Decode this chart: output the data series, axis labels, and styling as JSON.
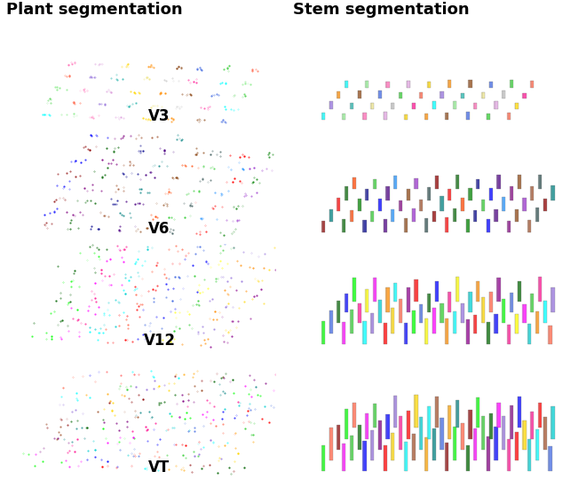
{
  "title_left": "Plant segmentation",
  "title_right": "Stem segmentation",
  "labels": [
    "V3",
    "V6",
    "V12",
    "VT"
  ],
  "background_color": "#ffffff",
  "title_fontsize": 13,
  "label_fontsize": 12,
  "fig_width": 6.6,
  "fig_height": 5.49,
  "dpi": 100,
  "rows": 4,
  "cols": 2,
  "plant_colors_v3": [
    "#00ffff",
    "#90ee90",
    "#ff69b4",
    "#dda0dd",
    "#ffd700",
    "#ff8c00",
    "#8b4513",
    "#4169e1",
    "#32cd32",
    "#ff6347",
    "#9370db",
    "#20b2aa",
    "#f0e68c",
    "#c0c0c0",
    "#ff1493"
  ],
  "plant_colors_v6": [
    "#8b0000",
    "#006400",
    "#00008b",
    "#4b0082",
    "#8b4513",
    "#2f4f4f",
    "#ff0000",
    "#008000",
    "#0000ff",
    "#800080",
    "#a0522d",
    "#008080",
    "#ff4500",
    "#32cd32",
    "#1e90ff",
    "#9932cc"
  ],
  "plant_colors_v12": [
    "#00ff00",
    "#ff00ff",
    "#00ffff",
    "#ff0000",
    "#0000ff",
    "#ffff00",
    "#ff8c00",
    "#8b008b",
    "#006400",
    "#ff1493",
    "#00ced1",
    "#ff6347",
    "#4169e1",
    "#32cd32",
    "#9370db",
    "#ffd700"
  ],
  "plant_colors_vt": [
    "#00ff00",
    "#ff00ff",
    "#0000ff",
    "#ff0000",
    "#00ffff",
    "#ffa500",
    "#8b0000",
    "#006400",
    "#800080",
    "#ff1493",
    "#00ced1",
    "#4169e1",
    "#ff6347",
    "#32cd32",
    "#9370db",
    "#ffd700",
    "#a0522d",
    "#008080"
  ]
}
